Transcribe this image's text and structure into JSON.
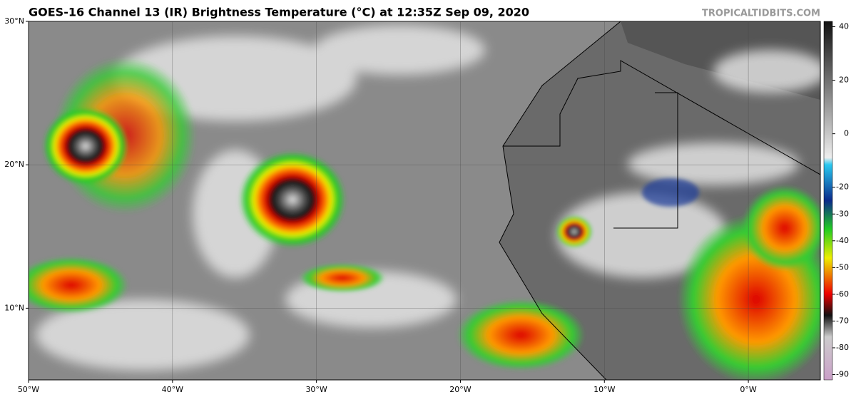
{
  "map": {
    "title": "GOES-16 Channel 13 (IR) Brightness Temperature (°C) at 12:35Z Sep 09, 2020",
    "source": "TROPICALTIDBITS.COM",
    "lonlim": [
      -50,
      5
    ],
    "latlim": [
      5,
      30
    ],
    "lon_ticks": [
      {
        "value": -50,
        "label": "50°W"
      },
      {
        "value": -40,
        "label": "40°W"
      },
      {
        "value": -30,
        "label": "30°W"
      },
      {
        "value": -20,
        "label": "20°W"
      },
      {
        "value": -10,
        "label": "10°W"
      },
      {
        "value": 0,
        "label": "0°W"
      }
    ],
    "lat_ticks": [
      {
        "value": 30,
        "label": "30°N"
      },
      {
        "value": 20,
        "label": "20°N"
      },
      {
        "value": 10,
        "label": "10°N"
      }
    ],
    "colorbar": {
      "lim": [
        -92,
        42
      ],
      "ticks": [
        40,
        20,
        0,
        -20,
        -30,
        -40,
        -50,
        -60,
        -70,
        -80,
        -90
      ]
    }
  }
}
